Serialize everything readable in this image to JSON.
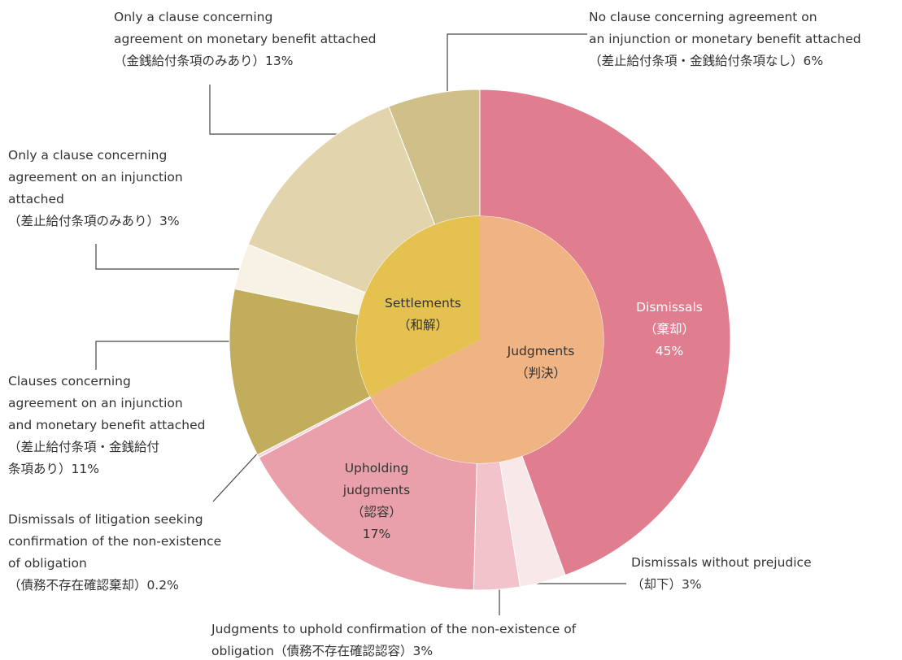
{
  "chart_data": {
    "type": "donut",
    "groups": [
      {
        "label": [
          "Judgments",
          "（判決）"
        ],
        "color": "#f0b383",
        "labels": [
          [
            "Dismissals",
            "（棄却）"
          ],
          [
            "Dismissals without prejudice",
            "（却下）"
          ],
          [
            "Judgments to uphold confirmation of the non-existence of",
            "obligation（債務不存在確認認容）"
          ],
          [
            "Upholding",
            "judgments",
            "（認容）"
          ],
          [
            "Dismissals of litigation seeking",
            "confirmation of the non-existence",
            "of obligation",
            "（債務不存在確認棄却）"
          ]
        ],
        "values": [
          45,
          3,
          3,
          17,
          0.2
        ],
        "value_labels": [
          "45%",
          "3%",
          "3%",
          "17%",
          "0.2%"
        ],
        "colors": [
          "#e07e90",
          "#f9e8ea",
          "#f2c3cb",
          "#e9a0ab",
          "#f4d6da"
        ]
      },
      {
        "label": [
          "Settlements",
          "（和解）"
        ],
        "color": "#e5c250",
        "labels": [
          [
            "Clauses concerning",
            "agreement on an injunction",
            "and monetary benefit attached",
            "（差止給付条項・金銭給付",
            "条項あり）"
          ],
          [
            "Only a clause concerning",
            "agreement on an injunction",
            "attached",
            "（差止給付条項のみあり）"
          ],
          [
            "Only a clause concerning",
            "agreement on monetary benefit attached",
            "（金銭給付条項のみあり）"
          ],
          [
            "No clause concerning agreement on",
            "an injunction or monetary benefit attached",
            "（差止給付条項・金銭給付条項なし）"
          ]
        ],
        "values": [
          11,
          3,
          13,
          6
        ],
        "value_labels": [
          "11%",
          "3%",
          "13%",
          "6%"
        ],
        "colors": [
          "#c2ad5c",
          "#f7f2e4",
          "#e2d5ae",
          "#cfc08a"
        ]
      }
    ]
  }
}
